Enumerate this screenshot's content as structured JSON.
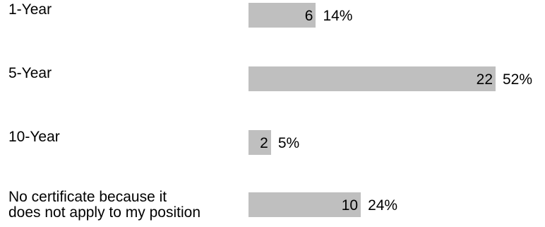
{
  "chart_data": {
    "type": "bar",
    "orientation": "horizontal",
    "categories": [
      "1-Year",
      "5-Year",
      "10-Year",
      "No certificate because it\ndoes not apply to my position"
    ],
    "values": [
      6,
      22,
      2,
      10
    ],
    "percent_labels": [
      "14%",
      "52%",
      "5%",
      "24%"
    ],
    "bar_color": "#bfbfbf",
    "title": "",
    "xlabel": "",
    "ylabel": ""
  }
}
